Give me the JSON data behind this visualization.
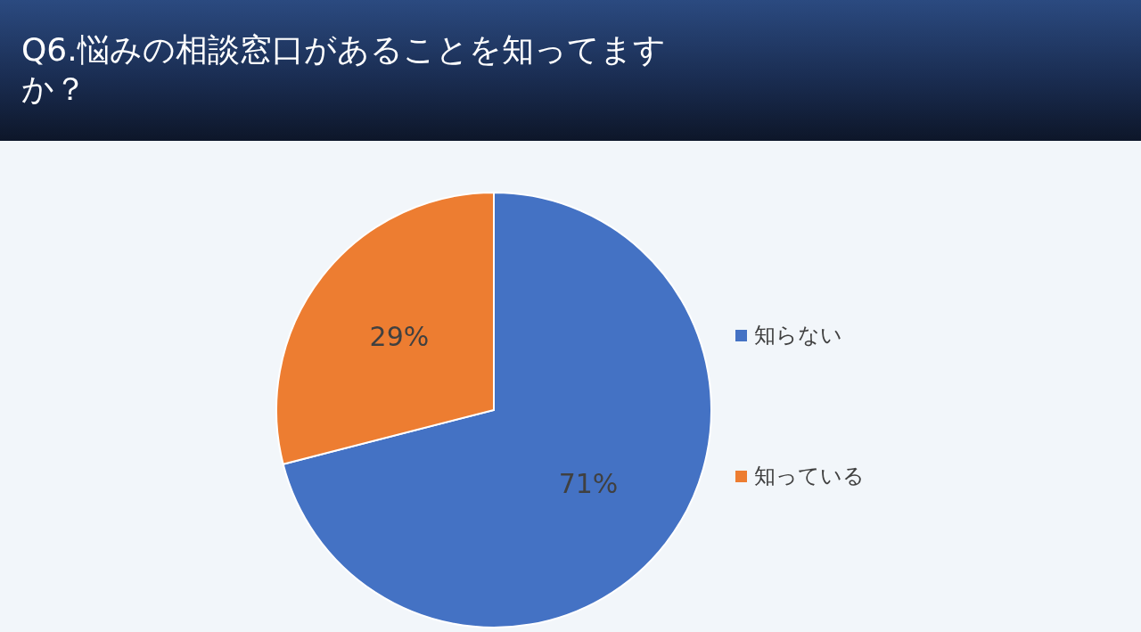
{
  "chart_data": {
    "type": "pie",
    "title": "Q6.悩みの相談窓口があることを知ってますか？",
    "categories": [
      "知らない",
      "知っている"
    ],
    "values": [
      71,
      29
    ],
    "colors": [
      "#4472c4",
      "#ed7d31"
    ],
    "value_labels": [
      "71%",
      "29%"
    ],
    "legend": "right"
  }
}
